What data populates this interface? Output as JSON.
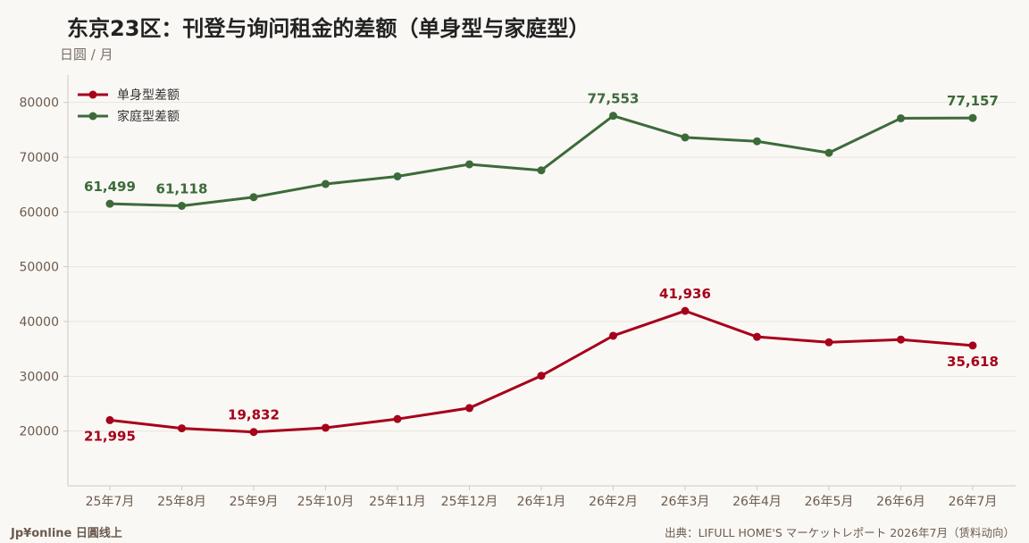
{
  "header": {
    "title": "东京23区：刊登与询问租金的差额（单身型与家庭型）",
    "unit": "日圆 / 月"
  },
  "footer": {
    "brand": "Jp¥online 日圓线上",
    "source": "出典：LIFULL HOME'S マーケットレポート 2026年7月（赁料动向）"
  },
  "colors": {
    "single": "#a6001a",
    "family": "#3c6b3a",
    "grid": "#e8e3dc",
    "axis": "#cfc8bf"
  },
  "chart_data": {
    "type": "line",
    "categories": [
      "25年7月",
      "25年8月",
      "25年9月",
      "25年10月",
      "25年11月",
      "25年12月",
      "26年1月",
      "26年2月",
      "26年3月",
      "26年4月",
      "26年5月",
      "26年6月",
      "26年7月"
    ],
    "ylim": [
      10000,
      85000
    ],
    "yticks": [
      20000,
      30000,
      40000,
      50000,
      60000,
      70000,
      80000
    ],
    "grid": true,
    "legend_position": "top-left",
    "series": [
      {
        "key": "single",
        "name": "单身型差额",
        "color": "#a6001a",
        "values": [
          21995,
          20500,
          19832,
          20600,
          22200,
          24200,
          30100,
          37400,
          41936,
          37200,
          36200,
          36700,
          35618
        ],
        "labels": [
          {
            "index": 0,
            "text": "21,995",
            "position": "below"
          },
          {
            "index": 2,
            "text": "19,832",
            "position": "above"
          },
          {
            "index": 8,
            "text": "41,936",
            "position": "above"
          },
          {
            "index": 12,
            "text": "35,618",
            "position": "below"
          }
        ]
      },
      {
        "key": "family",
        "name": "家庭型差额",
        "color": "#3c6b3a",
        "values": [
          61499,
          61118,
          62700,
          65100,
          66500,
          68700,
          67600,
          77553,
          73600,
          72900,
          70800,
          77100,
          77157
        ],
        "labels": [
          {
            "index": 0,
            "text": "61,499",
            "position": "above"
          },
          {
            "index": 1,
            "text": "61,118",
            "position": "above"
          },
          {
            "index": 7,
            "text": "77,553",
            "position": "above"
          },
          {
            "index": 12,
            "text": "77,157",
            "position": "above"
          }
        ]
      }
    ]
  }
}
